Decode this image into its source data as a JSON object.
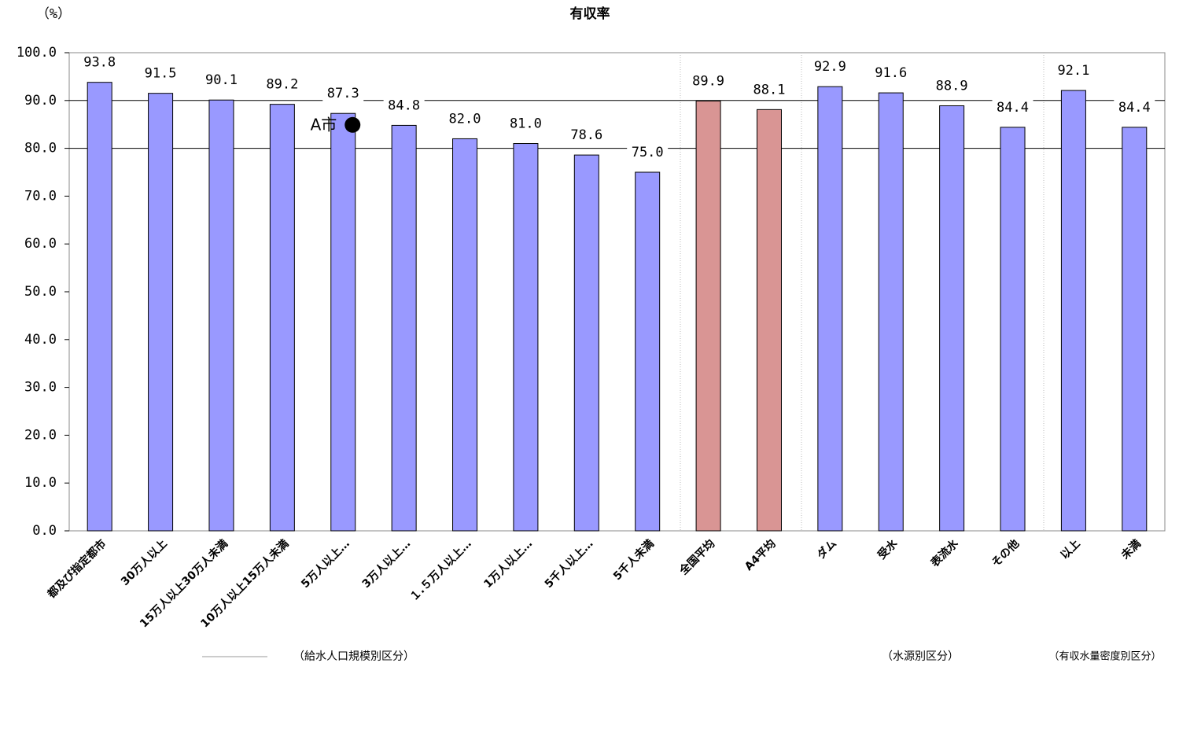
{
  "chart_data": {
    "type": "bar",
    "title": "有収率",
    "y_unit": "（%）",
    "categories": [
      "都及び指定都市",
      "30万人以上",
      "15万人以上30万人未満",
      "10万人以上15万人未満",
      "5万人以上…",
      "3万人以上…",
      "１.５万人以上…",
      "1万人以上…",
      "5千人以上…",
      "5千人未満",
      "全国平均",
      "A4平均",
      "ダム",
      "受水",
      "表流水",
      "その他",
      "以上",
      "未満"
    ],
    "values": [
      93.8,
      91.5,
      90.1,
      89.2,
      87.3,
      84.8,
      82.0,
      81.0,
      78.6,
      75.0,
      89.9,
      88.1,
      92.9,
      91.6,
      88.9,
      84.4,
      92.1,
      84.4
    ],
    "value_labels": [
      "93.8",
      "91.5",
      "90.1",
      "89.2",
      "87.3",
      "84.8",
      "82.0",
      "81.0",
      "78.6",
      "75.0",
      "89.9",
      "88.1",
      "92.9",
      "91.6",
      "88.9",
      "84.4",
      "92.1",
      "84.4"
    ],
    "colors": [
      "#9999ff",
      "#9999ff",
      "#9999ff",
      "#9999ff",
      "#9999ff",
      "#9999ff",
      "#9999ff",
      "#9999ff",
      "#9999ff",
      "#9999ff",
      "#d99594",
      "#d99594",
      "#9999ff",
      "#9999ff",
      "#9999ff",
      "#9999ff",
      "#9999ff",
      "#9999ff"
    ],
    "ylim": [
      0,
      100
    ],
    "yticks": [
      {
        "value": 0,
        "label": "0.0"
      },
      {
        "value": 10,
        "label": "10.0"
      },
      {
        "value": 20,
        "label": "20.0"
      },
      {
        "value": 30,
        "label": "30.0"
      },
      {
        "value": 40,
        "label": "40.0"
      },
      {
        "value": 50,
        "label": "50.0"
      },
      {
        "value": 60,
        "label": "60.0"
      },
      {
        "value": 70,
        "label": "70.0"
      },
      {
        "value": 80,
        "label": "80.0"
      },
      {
        "value": 90,
        "label": "90.0"
      },
      {
        "value": 100,
        "label": "100.0"
      }
    ],
    "gridlines": [
      80,
      90
    ],
    "marker": {
      "label": "A市",
      "category": "5万人以上…",
      "value": 84.9
    },
    "groups": [
      "（給水人口規模別区分）",
      "（水源別区分）",
      "（有収水量密度別区分）"
    ]
  }
}
